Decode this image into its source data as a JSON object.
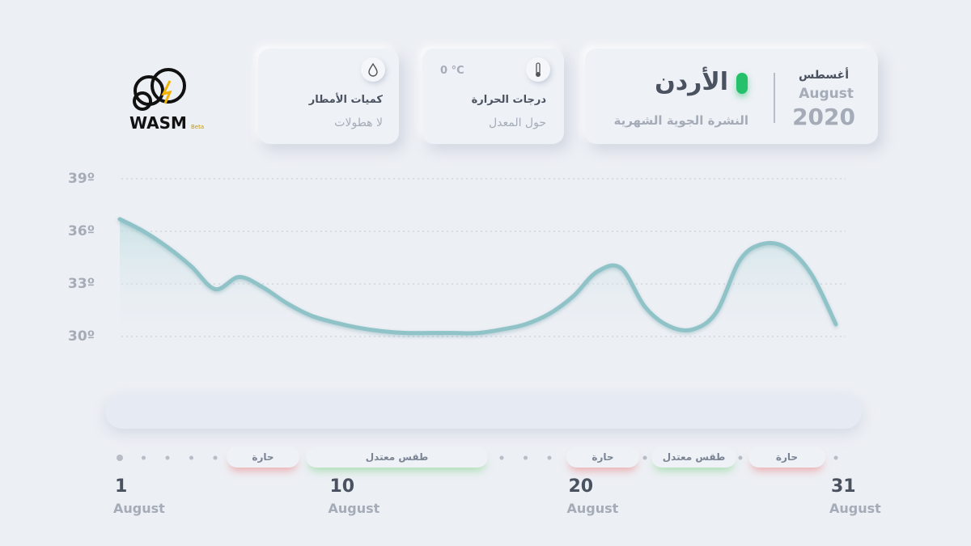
{
  "logo": {
    "name": "WASM",
    "badge": "Beta"
  },
  "header": {
    "month_ar": "أغسطس",
    "month_en": "August",
    "year": "2020",
    "country": "الأردن",
    "subtitle": "النشرة الجوية الشهرية"
  },
  "temperature_card": {
    "value": "0 °C",
    "title": "درجات الحرارة",
    "status": "حول المعدل"
  },
  "rain_card": {
    "title": "كميات الأمطار",
    "status": "لا هطولات"
  },
  "chart_data": {
    "type": "line",
    "x": [
      1,
      2,
      3,
      4,
      5,
      6,
      7,
      8,
      9,
      10,
      11,
      12,
      13,
      14,
      15,
      16,
      17,
      18,
      19,
      20,
      21,
      22,
      23,
      24,
      25,
      26,
      27,
      28,
      29,
      30,
      31
    ],
    "series": [
      {
        "name": "Temperature",
        "color": "#8fc3c8",
        "values": [
          36.7,
          36.0,
          35.1,
          34.0,
          32.7,
          33.4,
          32.8,
          31.9,
          31.2,
          30.8,
          30.5,
          30.3,
          30.2,
          30.2,
          30.2,
          30.2,
          30.4,
          30.7,
          31.3,
          32.3,
          33.7,
          33.9,
          31.7,
          30.6,
          30.4,
          31.4,
          34.4,
          35.3,
          35.0,
          33.5,
          30.7
        ]
      }
    ],
    "xlim": [
      1,
      31
    ],
    "xticks": [
      1,
      10,
      20,
      31
    ],
    "x_sublabel": "August",
    "ylim": [
      30,
      39
    ],
    "yticks": [
      {
        "value": 30,
        "label": "30º"
      },
      {
        "value": 33,
        "label": "33º"
      },
      {
        "value": 36,
        "label": "36º"
      },
      {
        "value": 39,
        "label": "39º"
      }
    ],
    "grid": true,
    "periods": [
      {
        "label": "حارة"
      },
      {
        "label": "طقس معتدل"
      },
      {
        "label": "حارة"
      },
      {
        "label": "طقس معتدل"
      },
      {
        "label": "حارة"
      }
    ]
  }
}
